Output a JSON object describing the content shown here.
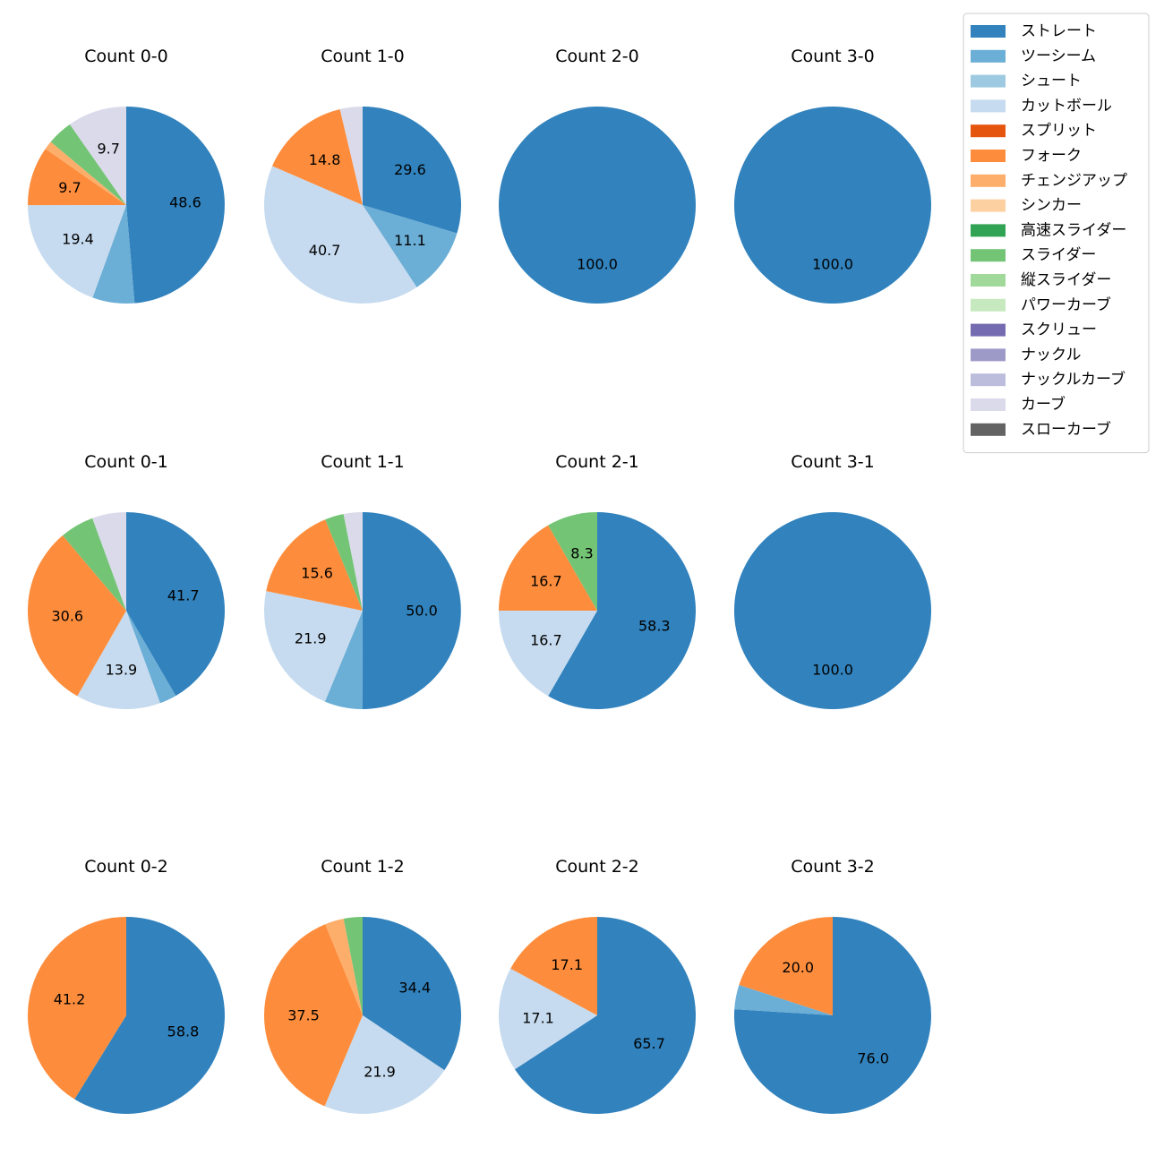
{
  "chart_data": {
    "type": "pie",
    "legend": {
      "placement": "top-right",
      "entries": [
        {
          "name": "ストレート",
          "color": "#3182bd"
        },
        {
          "name": "ツーシーム",
          "color": "#6baed6"
        },
        {
          "name": "シュート",
          "color": "#9ecae1"
        },
        {
          "name": "カットボール",
          "color": "#c6dbef"
        },
        {
          "name": "スプリット",
          "color": "#e6550d"
        },
        {
          "name": "フォーク",
          "color": "#fd8d3c"
        },
        {
          "name": "チェンジアップ",
          "color": "#fdae6b"
        },
        {
          "name": "シンカー",
          "color": "#fdd0a2"
        },
        {
          "name": "高速スライダー",
          "color": "#31a354"
        },
        {
          "name": "スライダー",
          "color": "#74c476"
        },
        {
          "name": "縦スライダー",
          "color": "#a1d99b"
        },
        {
          "name": "パワーカーブ",
          "color": "#c7e9c0"
        },
        {
          "name": "スクリュー",
          "color": "#756bb1"
        },
        {
          "name": "ナックル",
          "color": "#9e9ac8"
        },
        {
          "name": "ナックルカーブ",
          "color": "#bcbddc"
        },
        {
          "name": "カーブ",
          "color": "#dadaeb"
        },
        {
          "name": "スローカーブ",
          "color": "#636363"
        }
      ]
    },
    "charts": [
      {
        "title": "Count 0-0",
        "slices": [
          {
            "pitch": "ストレート",
            "value": 48.6,
            "label": "48.6"
          },
          {
            "pitch": "ツーシーム",
            "value": 6.9,
            "label": ""
          },
          {
            "pitch": "カットボール",
            "value": 19.4,
            "label": "19.4"
          },
          {
            "pitch": "フォーク",
            "value": 9.7,
            "label": "9.7"
          },
          {
            "pitch": "チェンジアップ",
            "value": 1.4,
            "label": ""
          },
          {
            "pitch": "スライダー",
            "value": 4.2,
            "label": ""
          },
          {
            "pitch": "カーブ",
            "value": 9.7,
            "label": "9.7"
          }
        ]
      },
      {
        "title": "Count 1-0",
        "slices": [
          {
            "pitch": "ストレート",
            "value": 29.6,
            "label": "29.6"
          },
          {
            "pitch": "ツーシーム",
            "value": 11.1,
            "label": "11.1"
          },
          {
            "pitch": "カットボール",
            "value": 40.7,
            "label": "40.7"
          },
          {
            "pitch": "フォーク",
            "value": 14.8,
            "label": "14.8"
          },
          {
            "pitch": "カーブ",
            "value": 3.7,
            "label": ""
          }
        ]
      },
      {
        "title": "Count 2-0",
        "slices": [
          {
            "pitch": "ストレート",
            "value": 100.0,
            "label": "100.0"
          }
        ]
      },
      {
        "title": "Count 3-0",
        "slices": [
          {
            "pitch": "ストレート",
            "value": 100.0,
            "label": "100.0"
          }
        ]
      },
      {
        "title": "Count 0-1",
        "slices": [
          {
            "pitch": "ストレート",
            "value": 41.7,
            "label": "41.7"
          },
          {
            "pitch": "ツーシーム",
            "value": 2.8,
            "label": ""
          },
          {
            "pitch": "カットボール",
            "value": 13.9,
            "label": "13.9"
          },
          {
            "pitch": "フォーク",
            "value": 30.6,
            "label": "30.6"
          },
          {
            "pitch": "スライダー",
            "value": 5.6,
            "label": ""
          },
          {
            "pitch": "カーブ",
            "value": 5.6,
            "label": ""
          }
        ]
      },
      {
        "title": "Count 1-1",
        "slices": [
          {
            "pitch": "ストレート",
            "value": 50.0,
            "label": "50.0"
          },
          {
            "pitch": "ツーシーム",
            "value": 6.2,
            "label": ""
          },
          {
            "pitch": "カットボール",
            "value": 21.9,
            "label": "21.9"
          },
          {
            "pitch": "フォーク",
            "value": 15.6,
            "label": "15.6"
          },
          {
            "pitch": "スライダー",
            "value": 3.1,
            "label": ""
          },
          {
            "pitch": "カーブ",
            "value": 3.1,
            "label": ""
          }
        ]
      },
      {
        "title": "Count 2-1",
        "slices": [
          {
            "pitch": "ストレート",
            "value": 58.3,
            "label": "58.3"
          },
          {
            "pitch": "カットボール",
            "value": 16.7,
            "label": "16.7"
          },
          {
            "pitch": "フォーク",
            "value": 16.7,
            "label": "16.7"
          },
          {
            "pitch": "スライダー",
            "value": 8.3,
            "label": "8.3"
          }
        ]
      },
      {
        "title": "Count 3-1",
        "slices": [
          {
            "pitch": "ストレート",
            "value": 100.0,
            "label": "100.0"
          }
        ]
      },
      {
        "title": "Count 0-2",
        "slices": [
          {
            "pitch": "ストレート",
            "value": 58.8,
            "label": "58.8"
          },
          {
            "pitch": "フォーク",
            "value": 41.2,
            "label": "41.2"
          }
        ]
      },
      {
        "title": "Count 1-2",
        "slices": [
          {
            "pitch": "ストレート",
            "value": 34.4,
            "label": "34.4"
          },
          {
            "pitch": "カットボール",
            "value": 21.9,
            "label": "21.9"
          },
          {
            "pitch": "フォーク",
            "value": 37.5,
            "label": "37.5"
          },
          {
            "pitch": "チェンジアップ",
            "value": 3.1,
            "label": ""
          },
          {
            "pitch": "スライダー",
            "value": 3.1,
            "label": ""
          }
        ]
      },
      {
        "title": "Count 2-2",
        "slices": [
          {
            "pitch": "ストレート",
            "value": 65.7,
            "label": "65.7"
          },
          {
            "pitch": "カットボール",
            "value": 17.1,
            "label": "17.1"
          },
          {
            "pitch": "フォーク",
            "value": 17.1,
            "label": "17.1"
          }
        ]
      },
      {
        "title": "Count 3-2",
        "slices": [
          {
            "pitch": "ストレート",
            "value": 76.0,
            "label": "76.0"
          },
          {
            "pitch": "ツーシーム",
            "value": 4.0,
            "label": ""
          },
          {
            "pitch": "フォーク",
            "value": 20.0,
            "label": "20.0"
          }
        ]
      }
    ]
  }
}
